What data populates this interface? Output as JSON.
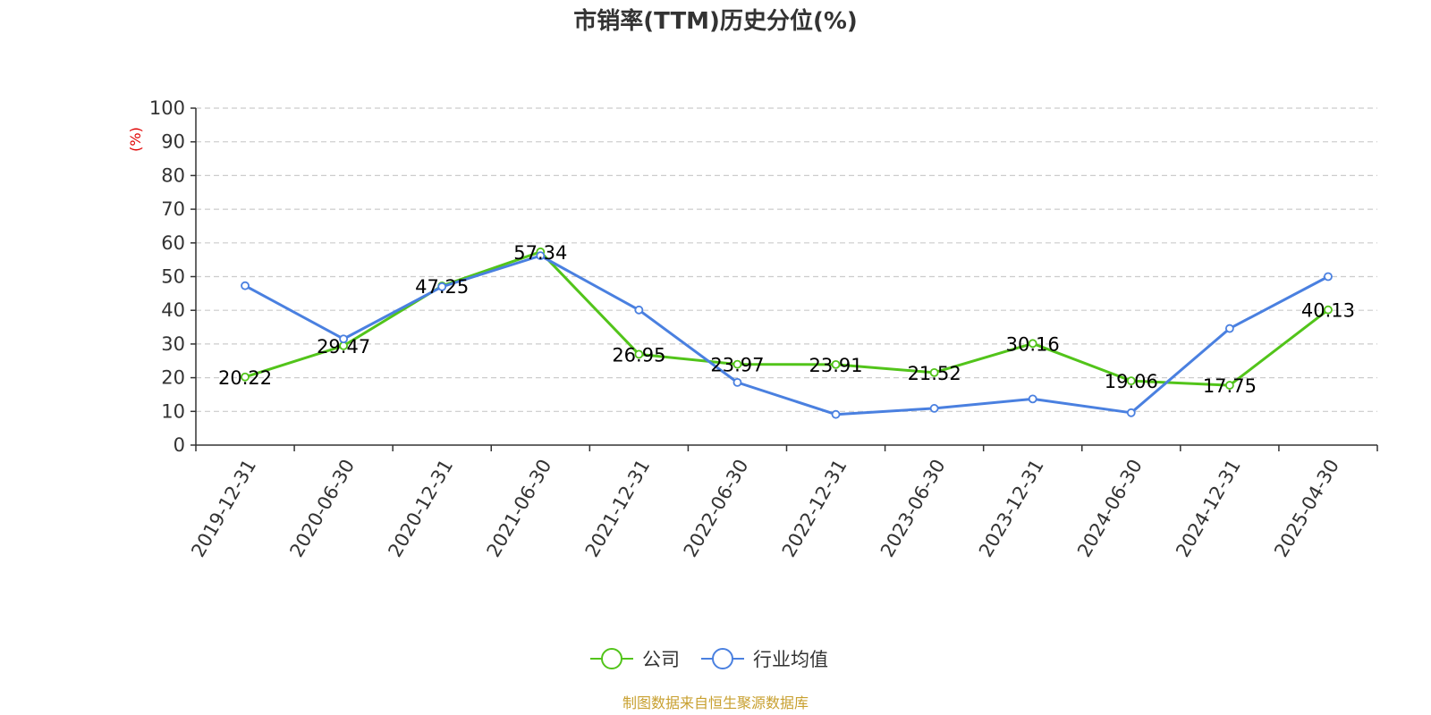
{
  "chart_data": {
    "type": "line",
    "title": "市销率(TTM)历史分位(%)",
    "ylabel": "(%)",
    "ylim": [
      0,
      100
    ],
    "yticks": [
      0,
      10,
      20,
      30,
      40,
      50,
      60,
      70,
      80,
      90,
      100
    ],
    "grid": true,
    "legend_position": "bottom-center",
    "categories": [
      "2019-12-31",
      "2020-06-30",
      "2020-12-31",
      "2021-06-30",
      "2021-12-31",
      "2022-06-30",
      "2022-12-31",
      "2023-06-30",
      "2023-12-31",
      "2024-06-30",
      "2024-12-31",
      "2025-04-30"
    ],
    "series": [
      {
        "name": "公司",
        "color": "#52c41a",
        "values": [
          20.22,
          29.47,
          47.25,
          57.34,
          26.95,
          23.97,
          23.91,
          21.52,
          30.16,
          19.06,
          17.75,
          40.13
        ],
        "show_labels": true
      },
      {
        "name": "行业均值",
        "color": "#4a80e0",
        "values": [
          47.3,
          31.5,
          47.0,
          56.2,
          40.1,
          18.6,
          9.1,
          10.9,
          13.7,
          9.6,
          34.6,
          50.0
        ],
        "show_labels": false
      }
    ],
    "source": "制图数据来自恒生聚源数据库"
  },
  "colors": {
    "unit_label": "#e00000",
    "source_text": "#c8a030",
    "grid": "#cccccc",
    "axis": "#333333"
  }
}
